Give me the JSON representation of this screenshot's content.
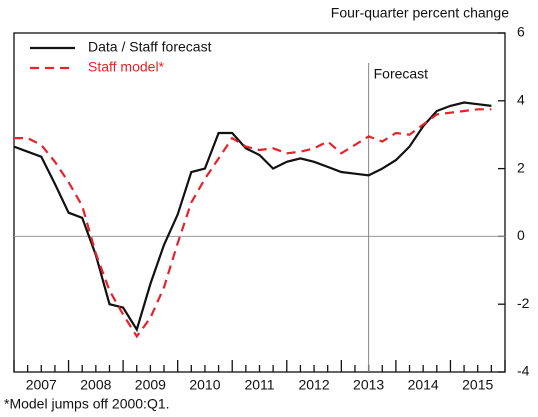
{
  "chart_data": {
    "type": "line",
    "title": "Four-quarter percent change",
    "footnote": "*Model jumps off 2000:Q1.",
    "forecast_label": "Forecast",
    "forecast_start": 2013.5,
    "x": [
      2007,
      2007.25,
      2007.5,
      2007.75,
      2008,
      2008.25,
      2008.5,
      2008.75,
      2009,
      2009.25,
      2009.5,
      2009.75,
      2010,
      2010.25,
      2010.5,
      2010.75,
      2011,
      2011.25,
      2011.5,
      2011.75,
      2012,
      2012.25,
      2012.5,
      2012.75,
      2013,
      2013.25,
      2013.5,
      2013.75,
      2014,
      2014.25,
      2014.5,
      2014.75,
      2015,
      2015.25,
      2015.5,
      2015.75
    ],
    "series": [
      {
        "name": "Data / Staff forecast",
        "color": "#111111",
        "dash": false,
        "values": [
          2.65,
          2.5,
          2.35,
          1.55,
          0.7,
          0.55,
          -0.55,
          -2.0,
          -2.1,
          -2.75,
          -1.4,
          -0.25,
          0.65,
          1.9,
          2.0,
          3.05,
          3.05,
          2.6,
          2.4,
          2.0,
          2.2,
          2.3,
          2.2,
          2.05,
          1.9,
          1.85,
          1.8,
          2.0,
          2.25,
          2.65,
          3.25,
          3.7,
          3.85,
          3.95,
          3.9,
          3.85
        ]
      },
      {
        "name": "Staff model*",
        "color": "#e8212a",
        "dash": true,
        "values": [
          2.9,
          2.9,
          2.7,
          2.2,
          1.6,
          0.9,
          -0.5,
          -1.6,
          -2.3,
          -2.95,
          -2.4,
          -1.5,
          -0.2,
          1.0,
          1.7,
          2.3,
          2.9,
          2.65,
          2.55,
          2.6,
          2.45,
          2.5,
          2.6,
          2.8,
          2.45,
          2.7,
          2.95,
          2.8,
          3.05,
          3.0,
          3.3,
          3.6,
          3.65,
          3.7,
          3.75,
          3.75
        ]
      }
    ],
    "xlim": [
      2007,
      2016
    ],
    "xticks": [
      {
        "value": 2007.5,
        "label": "2007"
      },
      {
        "value": 2008.5,
        "label": "2008"
      },
      {
        "value": 2009.5,
        "label": "2009"
      },
      {
        "value": 2010.5,
        "label": "2010"
      },
      {
        "value": 2011.5,
        "label": "2011"
      },
      {
        "value": 2012.5,
        "label": "2012"
      },
      {
        "value": 2013.5,
        "label": "2013"
      },
      {
        "value": 2014.5,
        "label": "2014"
      },
      {
        "value": 2015.5,
        "label": "2015"
      }
    ],
    "ylim": [
      -4,
      6
    ],
    "yticks": [
      -4,
      -2,
      0,
      2,
      4,
      6
    ],
    "zero_line": true
  }
}
